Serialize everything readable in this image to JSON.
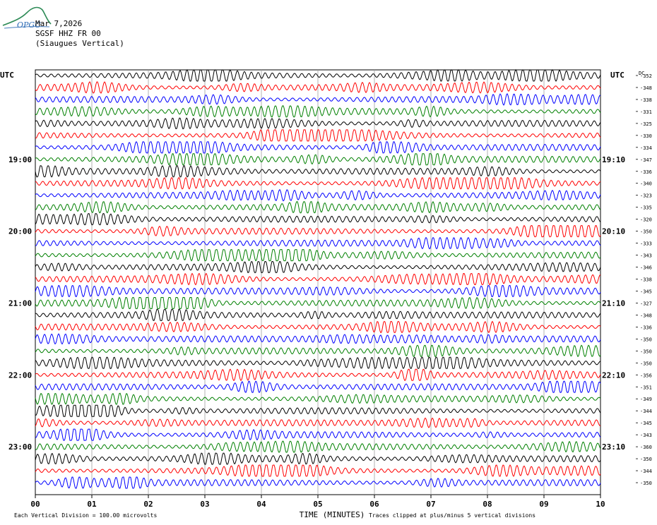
{
  "header": {
    "date": "Mar 7,2026",
    "station": "SGSF HHZ FR 00",
    "location": "(Siaugues Vertical)",
    "logo_text": "OPGC"
  },
  "colors": {
    "trace_cycle": [
      "#000000",
      "#ff0000",
      "#0000ff",
      "#008000"
    ],
    "grid": "#a0a0a0"
  },
  "chart_data": {
    "type": "line",
    "title": "",
    "xlabel": "TIME (MINUTES)",
    "x_ticks": [
      "00",
      "01",
      "02",
      "03",
      "04",
      "05",
      "06",
      "07",
      "08",
      "09",
      "10"
    ],
    "xlim": [
      0,
      10
    ],
    "left_axis_label": "UTC",
    "right_axis_label": "UTC",
    "dc_label": "DC",
    "left_hour_labels": [
      {
        "row": 7,
        "label": "19:00"
      },
      {
        "row": 13,
        "label": "20:00"
      },
      {
        "row": 19,
        "label": "21:00"
      },
      {
        "row": 25,
        "label": "22:00"
      },
      {
        "row": 31,
        "label": "23:00"
      }
    ],
    "right_hour_labels": [
      {
        "row": 7,
        "label": "19:10"
      },
      {
        "row": 13,
        "label": "20:10"
      },
      {
        "row": 19,
        "label": "21:10"
      },
      {
        "row": 25,
        "label": "22:10"
      },
      {
        "row": 31,
        "label": "23:10"
      }
    ],
    "dc_offsets": [
      -352,
      -348,
      -338,
      -331,
      -325,
      -330,
      -334,
      -347,
      -336,
      -340,
      -323,
      -335,
      -320,
      -350,
      -333,
      -343,
      -346,
      -338,
      -345,
      -327,
      -348,
      -336,
      -350,
      -350,
      -350,
      -356,
      -351,
      -349,
      -344,
      -345,
      -343,
      -360,
      -350,
      -344,
      -350
    ],
    "footer_left": "Each Vertical Division =  100.00 microvolts",
    "footer_right": "Traces clipped at plus/minus 5 vertical divisions"
  }
}
